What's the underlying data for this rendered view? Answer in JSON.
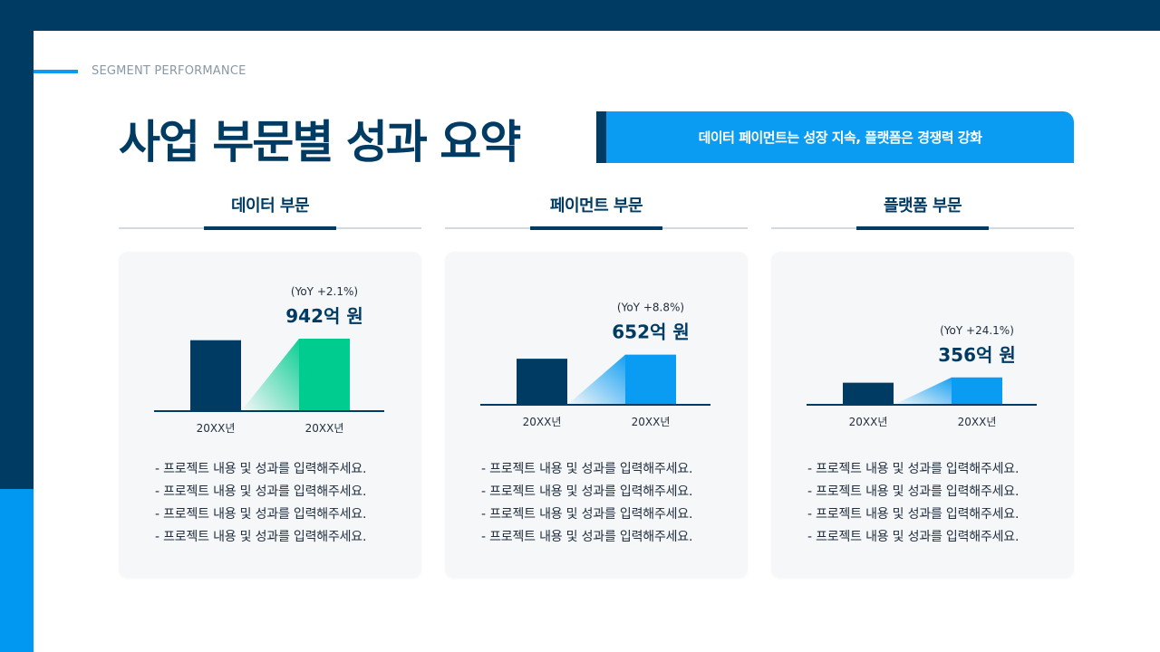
{
  "header": {
    "eyebrow": "SEGMENT PERFORMANCE",
    "title": "사업 부문별 성과 요약",
    "banner": "데이터 페이먼트는 성장 지속, 플랫폼은 경쟁력 강화"
  },
  "colors": {
    "navy": "#003b63",
    "blue": "#0a9cf2",
    "green": "#00cc8f"
  },
  "segments": [
    {
      "title": "데이터 부문",
      "yoy": "(YoY +2.1%)",
      "value_label": "942억 원",
      "accent": "#00cc8f",
      "items": [
        "- 프로젝트 내용 및 성과를 입력해주세요.",
        "- 프로젝트 내용 및 성과를 입력해주세요.",
        "- 프로젝트 내용 및 성과를 입력해주세요.",
        "- 프로젝트 내용 및 성과를 입력해주세요."
      ]
    },
    {
      "title": "페이먼트 부문",
      "yoy": "(YoY +8.8%)",
      "value_label": "652억 원",
      "accent": "#0a9cf2",
      "items": [
        "- 프로젝트 내용 및 성과를 입력해주세요.",
        "- 프로젝트 내용 및 성과를 입력해주세요.",
        "- 프로젝트 내용 및 성과를 입력해주세요.",
        "- 프로젝트 내용 및 성과를 입력해주세요."
      ]
    },
    {
      "title": "플랫폼 부문",
      "yoy": "(YoY +24.1%)",
      "value_label": "356억 원",
      "accent": "#0a9cf2",
      "items": [
        "- 프로젝트 내용 및 성과를 입력해주세요.",
        "- 프로젝트 내용 및 성과를 입력해주세요.",
        "- 프로젝트 내용 및 성과를 입력해주세요.",
        "- 프로젝트 내용 및 성과를 입력해주세요."
      ]
    }
  ],
  "chart_data": [
    {
      "type": "bar",
      "categories": [
        "20XX년",
        "20XX년"
      ],
      "values": [
        922,
        942
      ],
      "annotation": "(YoY +2.1%)",
      "value_label": "942억 원"
    },
    {
      "type": "bar",
      "categories": [
        "20XX년",
        "20XX년"
      ],
      "values": [
        599,
        652
      ],
      "annotation": "(YoY +8.8%)",
      "value_label": "652억 원"
    },
    {
      "type": "bar",
      "categories": [
        "20XX년",
        "20XX년"
      ],
      "values": [
        287,
        356
      ],
      "annotation": "(YoY +24.1%)",
      "value_label": "356억 원"
    }
  ]
}
